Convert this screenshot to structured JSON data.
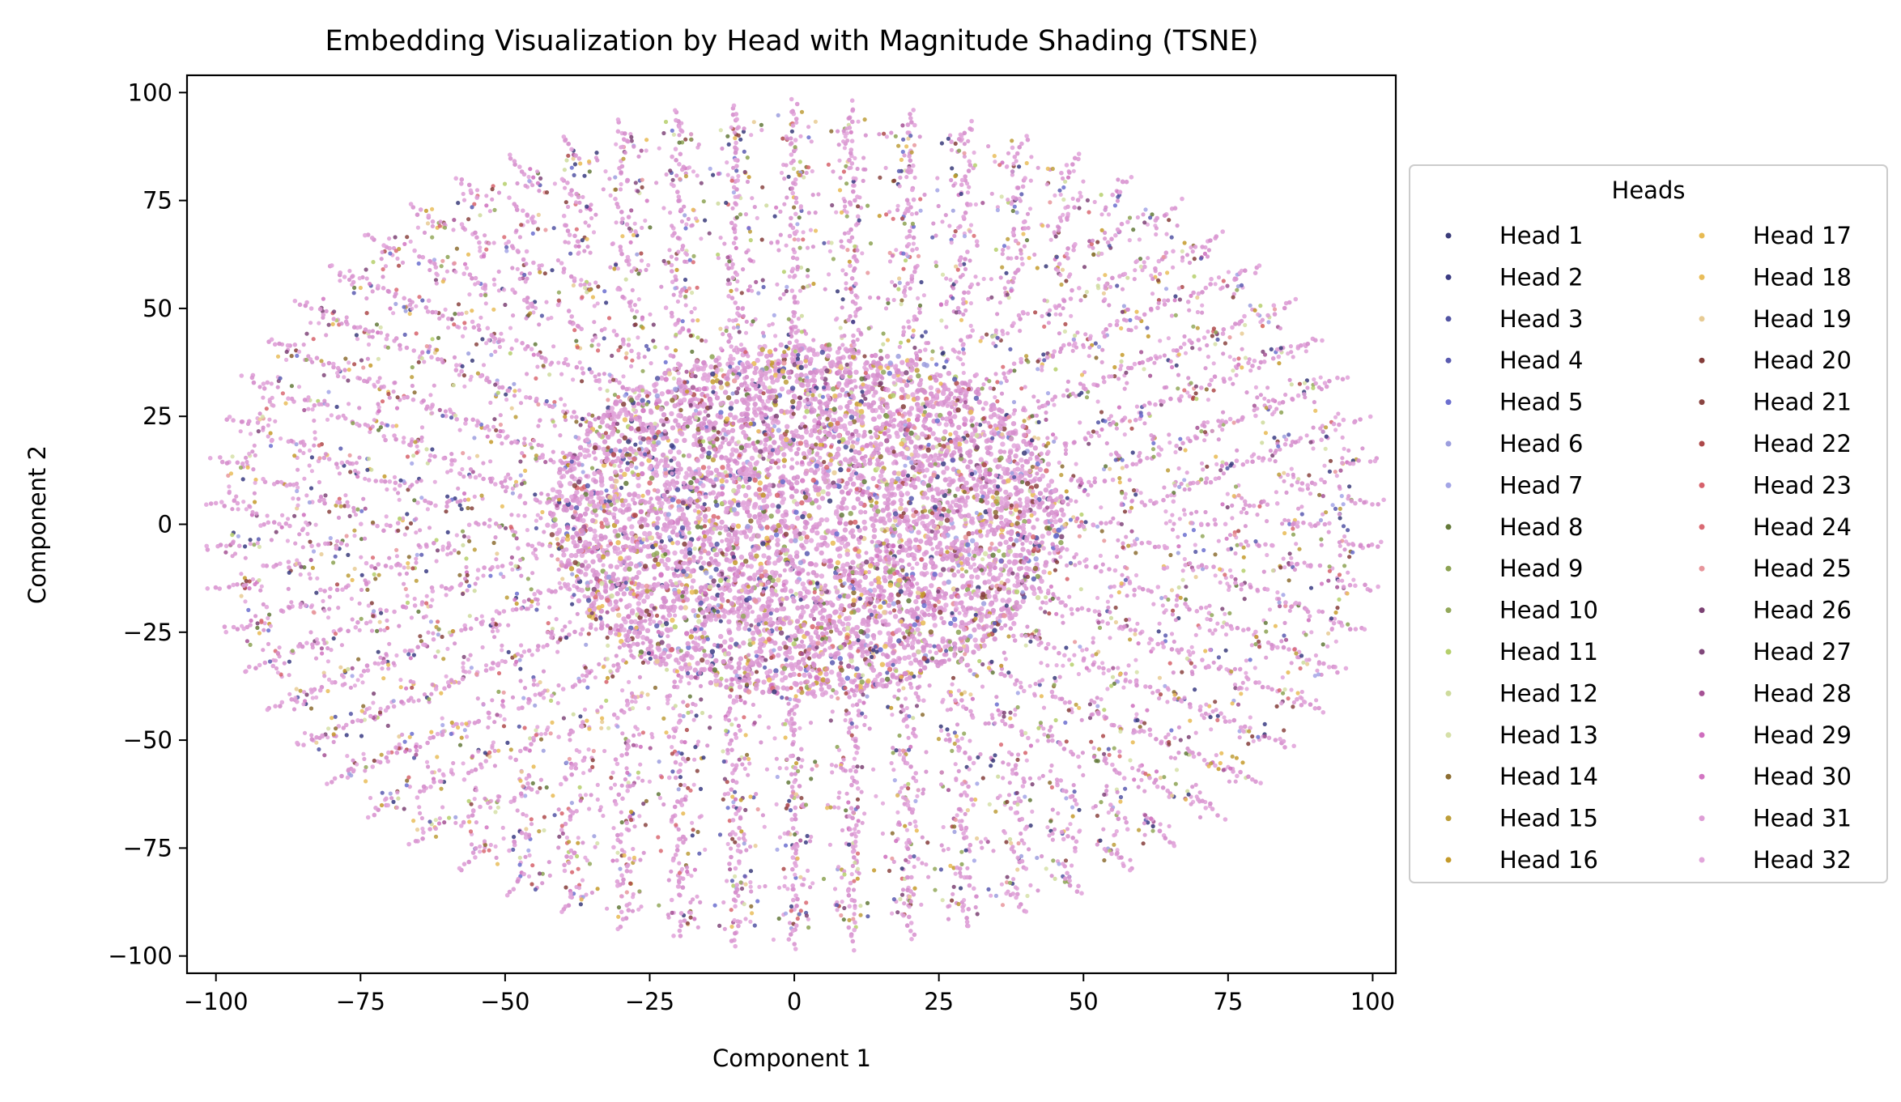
{
  "chart_data": {
    "type": "scatter",
    "title": "Embedding Visualization by Head with Magnitude Shading (TSNE)",
    "xlabel": "Component 1",
    "ylabel": "Component 2",
    "xlim": [
      -105,
      104
    ],
    "ylim": [
      -104,
      104
    ],
    "x_ticks": [
      -100,
      -75,
      -50,
      -25,
      0,
      25,
      50,
      75,
      100
    ],
    "y_ticks": [
      -100,
      -75,
      -50,
      -25,
      0,
      25,
      50,
      75,
      100
    ],
    "x_tick_labels": [
      "−100",
      "−75",
      "−50",
      "−25",
      "0",
      "25",
      "50",
      "75",
      "100"
    ],
    "y_tick_labels": [
      "−100",
      "−75",
      "−50",
      "−25",
      "0",
      "25",
      "50",
      "75",
      "100"
    ],
    "grid": false,
    "legend": {
      "title": "Heads",
      "placement": "outside-right",
      "columns": 2
    },
    "cluster_ring_radii": [
      16,
      24,
      32,
      40,
      48,
      57,
      66,
      75,
      84,
      93
    ],
    "series": [
      {
        "name": "Head 1",
        "color": "#393b79"
      },
      {
        "name": "Head 2",
        "color": "#3a3b82"
      },
      {
        "name": "Head 3",
        "color": "#5254a3"
      },
      {
        "name": "Head 4",
        "color": "#5a5bb0"
      },
      {
        "name": "Head 5",
        "color": "#6b6ecf"
      },
      {
        "name": "Head 6",
        "color": "#9c9ede"
      },
      {
        "name": "Head 7",
        "color": "#a3a5e6"
      },
      {
        "name": "Head 8",
        "color": "#637939"
      },
      {
        "name": "Head 9",
        "color": "#8ca252"
      },
      {
        "name": "Head 10",
        "color": "#93a85a"
      },
      {
        "name": "Head 11",
        "color": "#b5cf6b"
      },
      {
        "name": "Head 12",
        "color": "#cedb9c"
      },
      {
        "name": "Head 13",
        "color": "#d6e0a8"
      },
      {
        "name": "Head 14",
        "color": "#8c6d31"
      },
      {
        "name": "Head 15",
        "color": "#bd9e39"
      },
      {
        "name": "Head 16",
        "color": "#c49a2a"
      },
      {
        "name": "Head 17",
        "color": "#e7ba52"
      },
      {
        "name": "Head 18",
        "color": "#e9bd5a"
      },
      {
        "name": "Head 19",
        "color": "#e7cb94"
      },
      {
        "name": "Head 20",
        "color": "#843c39"
      },
      {
        "name": "Head 21",
        "color": "#8a4441"
      },
      {
        "name": "Head 22",
        "color": "#ad494a"
      },
      {
        "name": "Head 23",
        "color": "#d6616b"
      },
      {
        "name": "Head 24",
        "color": "#d96a73"
      },
      {
        "name": "Head 25",
        "color": "#e7969c"
      },
      {
        "name": "Head 26",
        "color": "#7b4173"
      },
      {
        "name": "Head 27",
        "color": "#80477a"
      },
      {
        "name": "Head 28",
        "color": "#a55194"
      },
      {
        "name": "Head 29",
        "color": "#ce6dbd"
      },
      {
        "name": "Head 30",
        "color": "#d275c2"
      },
      {
        "name": "Head 31",
        "color": "#de9ed6"
      },
      {
        "name": "Head 32",
        "color": "#e2a6db"
      }
    ]
  }
}
